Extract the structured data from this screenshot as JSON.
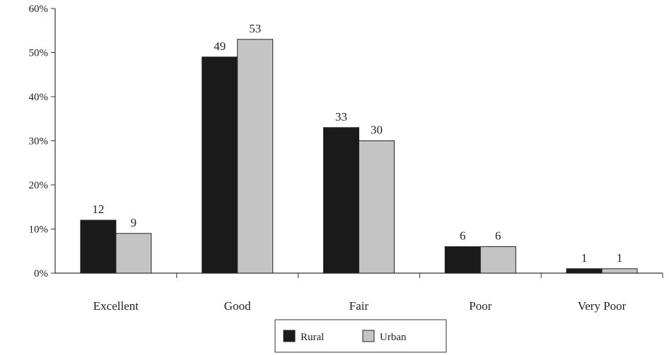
{
  "chart_data": {
    "type": "bar",
    "title": "",
    "xlabel": "",
    "ylabel": "",
    "categories": [
      "Excellent",
      "Good",
      "Fair",
      "Poor",
      "Very Poor"
    ],
    "series": [
      {
        "name": "Rural",
        "values": [
          12,
          49,
          33,
          6,
          1
        ],
        "color": "#1a1a1a"
      },
      {
        "name": "Urban",
        "values": [
          9,
          53,
          30,
          6,
          1
        ],
        "color": "#c4c4c4"
      }
    ],
    "data_labels": {
      "Rural": [
        "12",
        "49",
        "33",
        "6",
        "1"
      ],
      "Urban": [
        "9",
        "53",
        "30",
        "6",
        "1"
      ]
    },
    "ylim": [
      0,
      60
    ],
    "yticks": [
      0,
      10,
      20,
      30,
      40,
      50,
      60
    ],
    "ytick_labels": [
      "0%",
      "10%",
      "20%",
      "30%",
      "40%",
      "50%",
      "60%"
    ],
    "grid": false,
    "legend": {
      "position": "bottom-center",
      "entries": [
        "Rural",
        "Urban"
      ]
    }
  }
}
